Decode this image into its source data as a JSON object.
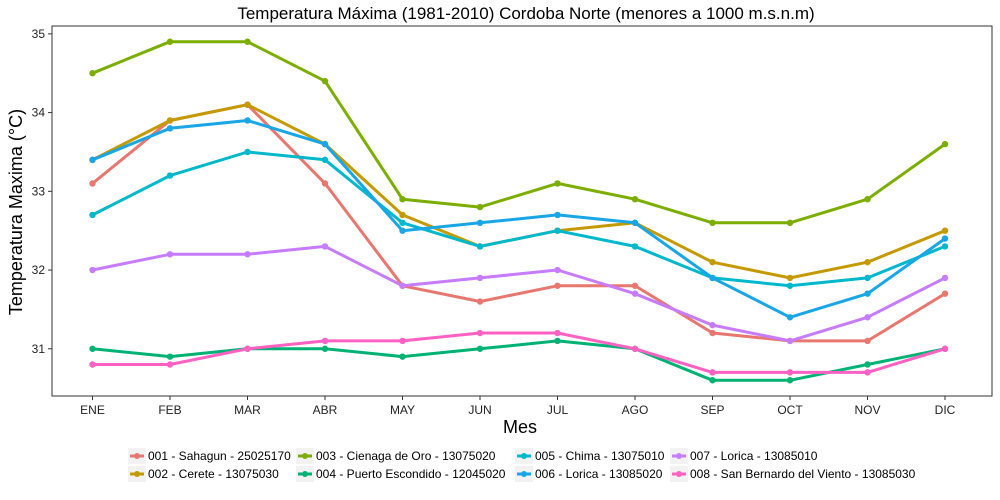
{
  "chart_data": {
    "type": "line",
    "title": "Temperatura Máxima (1981-2010) Cordoba Norte (menores a 1000 m.s.n.m)",
    "xlabel": "Mes",
    "ylabel": "Temperatura Maxima (°C)",
    "categories": [
      "ENE",
      "FEB",
      "MAR",
      "ABR",
      "MAY",
      "JUN",
      "JUL",
      "AGO",
      "SEP",
      "OCT",
      "NOV",
      "DIC"
    ],
    "yticks": [
      "31",
      "32",
      "33",
      "34",
      "35"
    ],
    "ylim": [
      30.4,
      35.1
    ],
    "grid": false,
    "legend_position": "bottom",
    "series": [
      {
        "name": "001 - Sahagun - 25025170",
        "color": "#E8776F",
        "values": [
          33.1,
          33.9,
          34.1,
          33.1,
          31.8,
          31.6,
          31.8,
          31.8,
          31.2,
          31.1,
          31.1,
          31.7
        ]
      },
      {
        "name": "002 - Cerete - 13075030",
        "color": "#C49A00",
        "values": [
          33.4,
          33.9,
          34.1,
          33.6,
          32.7,
          32.3,
          32.5,
          32.6,
          32.1,
          31.9,
          32.1,
          32.5
        ]
      },
      {
        "name": "003 - Cienaga de Oro - 13075020",
        "color": "#7CAE00",
        "values": [
          34.5,
          34.9,
          34.9,
          34.4,
          32.9,
          32.8,
          33.1,
          32.9,
          32.6,
          32.6,
          32.9,
          33.6
        ]
      },
      {
        "name": "004 - Puerto Escondido - 12045020",
        "color": "#00B374",
        "values": [
          31.0,
          30.9,
          31.0,
          31.0,
          30.9,
          31.0,
          31.1,
          31.0,
          30.6,
          30.6,
          30.8,
          31.0
        ]
      },
      {
        "name": "005 - Chima - 13075010",
        "color": "#00B8CC",
        "values": [
          32.7,
          33.2,
          33.5,
          33.4,
          32.6,
          32.3,
          32.5,
          32.3,
          31.9,
          31.8,
          31.9,
          32.3
        ]
      },
      {
        "name": "006 - Lorica - 13085020",
        "color": "#18A6E6",
        "values": [
          33.4,
          33.8,
          33.9,
          33.6,
          32.5,
          32.6,
          32.7,
          32.6,
          31.9,
          31.4,
          31.7,
          32.4
        ]
      },
      {
        "name": "007 - Lorica - 13085010",
        "color": "#C77CFF",
        "values": [
          32.0,
          32.2,
          32.2,
          32.3,
          31.8,
          31.9,
          32.0,
          31.7,
          31.3,
          31.1,
          31.4,
          31.9
        ]
      },
      {
        "name": "008 - San Bernardo del Viento - 13085030",
        "color": "#FF61C3",
        "values": [
          30.8,
          30.8,
          31.0,
          31.1,
          31.1,
          31.2,
          31.2,
          31.0,
          30.7,
          30.7,
          30.7,
          31.0
        ]
      }
    ]
  }
}
